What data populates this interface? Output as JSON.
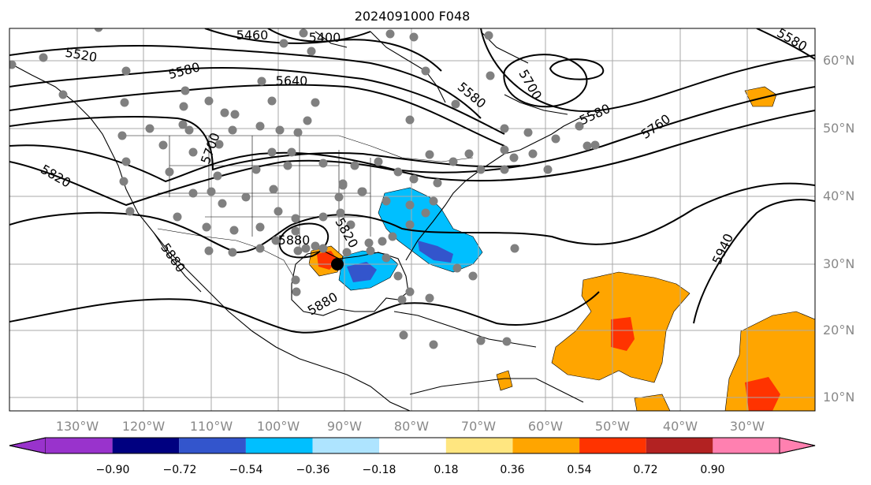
{
  "title": "2024091000 F048",
  "lon_labels": [
    "130°W",
    "120°W",
    "110°W",
    "100°W",
    "90°W",
    "80°W",
    "70°W",
    "60°W",
    "50°W",
    "40°W",
    "30°W"
  ],
  "lat_labels": [
    "60°N",
    "50°N",
    "40°N",
    "30°N",
    "20°N",
    "10°N"
  ],
  "colorbar": {
    "ticks": [
      "−0.90",
      "−0.72",
      "−0.54",
      "−0.36",
      "−0.18",
      "0.18",
      "0.36",
      "0.54",
      "0.72",
      "0.90"
    ],
    "colors": [
      "#9933cc",
      "#000080",
      "#3355cc",
      "#00bfff",
      "#aee4ff",
      "#ffffff",
      "#ffe680",
      "#ffa500",
      "#ff3300",
      "#b22222",
      "#ff80b0"
    ]
  },
  "contour_labels": [
    "5400",
    "5460",
    "5520",
    "5580",
    "5580",
    "5580",
    "5580",
    "5640",
    "5700",
    "5700",
    "5760",
    "5820",
    "5820",
    "5880",
    "5880",
    "5880",
    "5940"
  ],
  "colors": {
    "positive": "#ffa500",
    "positive_strong": "#ff3300",
    "negative": "#00bfff",
    "negative_strong": "#3355cc",
    "station": "#808080",
    "grid": "#aaaaaa"
  }
}
